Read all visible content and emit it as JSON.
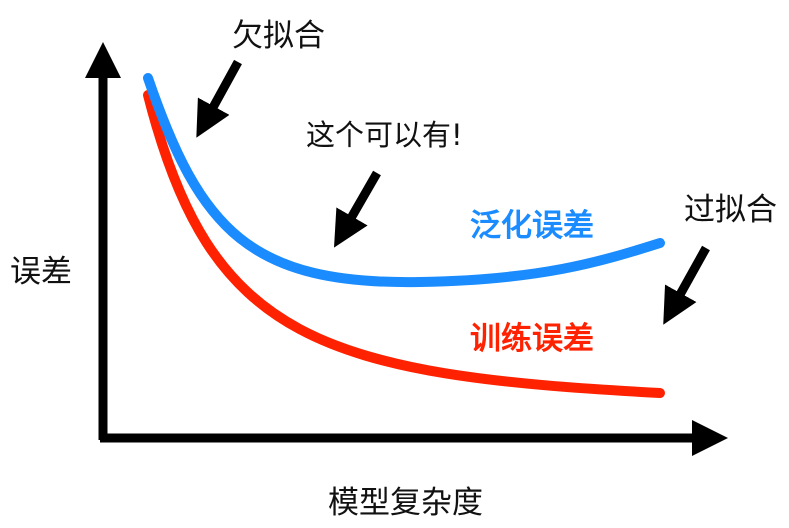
{
  "labels": {
    "underfit": "欠拟合",
    "just_right": "这个可以有!",
    "overfit": "过拟合",
    "generalization_error": "泛化误差",
    "training_error": "训练误差",
    "y_axis": "误差",
    "x_axis": "模型复杂度"
  },
  "colors": {
    "generalization_error": "#1a8cff",
    "training_error": "#ff2200",
    "axes": "#000000",
    "text": "#111111"
  }
}
